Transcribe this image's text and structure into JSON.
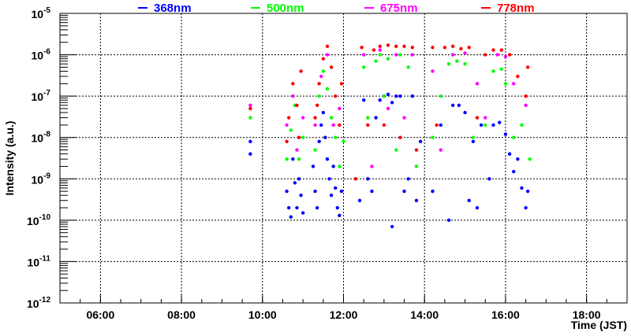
{
  "chart_data": {
    "type": "scatter",
    "title": "",
    "xlabel": "Time (JST)",
    "ylabel": "Intensity (a.u.)",
    "xlim": [
      5,
      19
    ],
    "ylim": [
      1e-12,
      1e-05
    ],
    "yscale": "log",
    "grid": true,
    "legend_placement": "top",
    "xticks": [
      {
        "v": 6,
        "label": "06:00"
      },
      {
        "v": 8,
        "label": "08:00"
      },
      {
        "v": 10,
        "label": "10:00"
      },
      {
        "v": 12,
        "label": "12:00"
      },
      {
        "v": 14,
        "label": "14:00"
      },
      {
        "v": 16,
        "label": "16:00"
      },
      {
        "v": 18,
        "label": "18:00"
      }
    ],
    "yticks": [
      {
        "v": -5,
        "base": "10",
        "exp": "-5"
      },
      {
        "v": -6,
        "base": "10",
        "exp": "-6"
      },
      {
        "v": -7,
        "base": "10",
        "exp": "-7"
      },
      {
        "v": -8,
        "base": "10",
        "exp": "-8"
      },
      {
        "v": -9,
        "base": "10",
        "exp": "-9"
      },
      {
        "v": -10,
        "base": "10",
        "exp": "-10"
      },
      {
        "v": -11,
        "base": "10",
        "exp": "-11"
      },
      {
        "v": -12,
        "base": "10",
        "exp": "-12"
      }
    ],
    "series": [
      {
        "name": "368nm",
        "color": "#0000ff",
        "points": [
          [
            9.7,
            8e-09
          ],
          [
            9.7,
            4e-09
          ],
          [
            10.6,
            5e-10
          ],
          [
            10.65,
            2e-10
          ],
          [
            10.7,
            1.2e-10
          ],
          [
            10.75,
            3e-09
          ],
          [
            10.8,
            8e-10
          ],
          [
            10.85,
            2e-10
          ],
          [
            10.9,
            1e-09
          ],
          [
            10.95,
            4e-10
          ],
          [
            11.0,
            1.5e-10
          ],
          [
            11.25,
            2e-09
          ],
          [
            11.3,
            5e-10
          ],
          [
            11.35,
            2e-10
          ],
          [
            11.4,
            8e-09
          ],
          [
            11.45,
            2e-08
          ],
          [
            11.5,
            4e-08
          ],
          [
            11.55,
            1e-08
          ],
          [
            11.6,
            3e-09
          ],
          [
            11.65,
            1e-09
          ],
          [
            11.7,
            4e-10
          ],
          [
            11.75,
            2e-09
          ],
          [
            11.8,
            6e-10
          ],
          [
            11.85,
            2e-10
          ],
          [
            11.9,
            1.3e-10
          ],
          [
            11.95,
            5e-10
          ],
          [
            12.3,
            1e-09
          ],
          [
            12.4,
            3e-10
          ],
          [
            12.5,
            8e-08
          ],
          [
            12.6,
            1e-09
          ],
          [
            12.7,
            5e-10
          ],
          [
            12.8,
            3e-08
          ],
          [
            12.9,
            8e-08
          ],
          [
            13.0,
            1e-07
          ],
          [
            13.1,
            1.1e-07
          ],
          [
            13.2,
            7e-08
          ],
          [
            13.3,
            1e-07
          ],
          [
            13.2,
            7e-11
          ],
          [
            13.4,
            1e-07
          ],
          [
            13.5,
            5e-10
          ],
          [
            13.6,
            1e-09
          ],
          [
            13.7,
            1e-07
          ],
          [
            13.8,
            3e-10
          ],
          [
            13.9,
            8e-09
          ],
          [
            14.2,
            5e-10
          ],
          [
            14.4,
            2e-08
          ],
          [
            14.6,
            1e-10
          ],
          [
            14.7,
            6e-08
          ],
          [
            14.85,
            6e-08
          ],
          [
            15.0,
            4e-08
          ],
          [
            15.1,
            3e-10
          ],
          [
            15.2,
            8e-09
          ],
          [
            15.3,
            2e-10
          ],
          [
            15.4,
            2e-08
          ],
          [
            15.6,
            1e-09
          ],
          [
            15.7,
            2e-08
          ],
          [
            15.85,
            2.3e-08
          ],
          [
            16.0,
            1.2e-08
          ],
          [
            16.1,
            4e-09
          ],
          [
            16.2,
            1.5e-09
          ],
          [
            16.3,
            3e-09
          ],
          [
            16.4,
            6e-10
          ],
          [
            16.5,
            2e-10
          ],
          [
            16.55,
            5e-10
          ]
        ]
      },
      {
        "name": "500nm",
        "color": "#00ff00",
        "points": [
          [
            9.7,
            3e-08
          ],
          [
            10.6,
            3e-09
          ],
          [
            10.7,
            1.5e-08
          ],
          [
            10.8,
            6e-08
          ],
          [
            10.9,
            3e-09
          ],
          [
            11.0,
            1e-08
          ],
          [
            11.3,
            5e-09
          ],
          [
            11.4,
            1e-07
          ],
          [
            11.5,
            4e-07
          ],
          [
            11.6,
            1.5e-07
          ],
          [
            11.7,
            3e-08
          ],
          [
            11.8,
            1e-08
          ],
          [
            11.9,
            2e-09
          ],
          [
            12.0,
            8e-09
          ],
          [
            12.5,
            5e-07
          ],
          [
            12.6,
            3e-08
          ],
          [
            12.8,
            7e-07
          ],
          [
            12.9,
            1e-06
          ],
          [
            13.0,
            1e-07
          ],
          [
            13.1,
            8e-07
          ],
          [
            13.3,
            5e-09
          ],
          [
            13.4,
            1e-06
          ],
          [
            13.6,
            5e-07
          ],
          [
            13.8,
            2e-09
          ],
          [
            14.2,
            1e-08
          ],
          [
            14.4,
            1e-07
          ],
          [
            14.6,
            6e-07
          ],
          [
            14.8,
            7e-07
          ],
          [
            15.0,
            6e-07
          ],
          [
            15.2,
            1e-08
          ],
          [
            15.5,
            2e-08
          ],
          [
            15.7,
            4e-07
          ],
          [
            15.9,
            4.5e-07
          ],
          [
            16.0,
            2e-07
          ],
          [
            16.2,
            1e-08
          ],
          [
            16.4,
            2e-08
          ],
          [
            16.6,
            3e-09
          ]
        ]
      },
      {
        "name": "675nm",
        "color": "#ff00ff",
        "points": [
          [
            9.7,
            6e-08
          ],
          [
            10.6,
            2e-08
          ],
          [
            10.75,
            1e-07
          ],
          [
            10.85,
            5e-09
          ],
          [
            11.0,
            3e-08
          ],
          [
            11.3,
            2e-08
          ],
          [
            11.45,
            3e-07
          ],
          [
            11.6,
            1e-06
          ],
          [
            11.75,
            2e-08
          ],
          [
            11.9,
            5e-08
          ],
          [
            12.5,
            1e-06
          ],
          [
            12.7,
            2e-09
          ],
          [
            12.9,
            1.3e-06
          ],
          [
            13.1,
            5e-08
          ],
          [
            13.3,
            1e-06
          ],
          [
            13.5,
            3e-08
          ],
          [
            13.7,
            1e-06
          ],
          [
            14.2,
            4e-07
          ],
          [
            14.4,
            5e-09
          ],
          [
            14.7,
            1e-06
          ],
          [
            15.0,
            1.1e-06
          ],
          [
            15.3,
            2e-07
          ],
          [
            15.5,
            3e-08
          ],
          [
            15.8,
            1e-06
          ],
          [
            16.0,
            9e-07
          ],
          [
            16.2,
            2e-07
          ],
          [
            16.5,
            6e-08
          ]
        ]
      },
      {
        "name": "778nm",
        "color": "#ff0000",
        "points": [
          [
            9.7,
            5e-08
          ],
          [
            10.6,
            8e-09
          ],
          [
            10.65,
            3e-08
          ],
          [
            10.75,
            2e-07
          ],
          [
            10.85,
            6e-08
          ],
          [
            10.9,
            1e-08
          ],
          [
            10.95,
            4e-07
          ],
          [
            11.3,
            3e-08
          ],
          [
            11.35,
            6e-08
          ],
          [
            11.4,
            2e-07
          ],
          [
            11.5,
            8e-07
          ],
          [
            11.6,
            1.6e-06
          ],
          [
            11.7,
            5e-07
          ],
          [
            11.8,
            1e-07
          ],
          [
            11.9,
            2e-08
          ],
          [
            11.95,
            2e-07
          ],
          [
            12.3,
            1e-09
          ],
          [
            12.45,
            1.5e-06
          ],
          [
            12.6,
            2e-08
          ],
          [
            12.75,
            1.3e-06
          ],
          [
            12.9,
            1.6e-06
          ],
          [
            13.0,
            2e-08
          ],
          [
            13.1,
            1.7e-06
          ],
          [
            13.3,
            1.6e-06
          ],
          [
            13.4,
            1e-08
          ],
          [
            13.5,
            1.6e-06
          ],
          [
            13.7,
            1.5e-06
          ],
          [
            13.8,
            5e-09
          ],
          [
            14.2,
            1.5e-06
          ],
          [
            14.3,
            2e-08
          ],
          [
            14.5,
            1.5e-06
          ],
          [
            14.7,
            1.6e-06
          ],
          [
            14.9,
            1.4e-06
          ],
          [
            15.1,
            1.5e-06
          ],
          [
            15.3,
            3e-08
          ],
          [
            15.5,
            1e-06
          ],
          [
            15.7,
            1.3e-06
          ],
          [
            15.9,
            1.3e-06
          ],
          [
            16.1,
            1e-06
          ],
          [
            16.3,
            3e-07
          ],
          [
            16.5,
            1e-07
          ],
          [
            16.55,
            5e-07
          ]
        ]
      }
    ]
  }
}
